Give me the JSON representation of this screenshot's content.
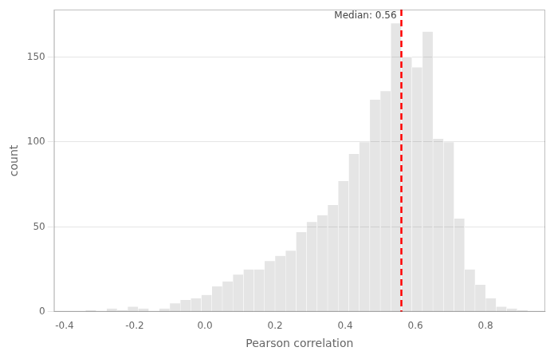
{
  "chart_data": {
    "type": "histogram",
    "xlabel": "Pearson correlation",
    "ylabel": "count",
    "bins": [
      -0.4,
      -0.37,
      -0.34,
      -0.31,
      -0.28,
      -0.25,
      -0.22,
      -0.19,
      -0.16,
      -0.13,
      -0.1,
      -0.07,
      -0.04,
      -0.01,
      0.02,
      0.05,
      0.08,
      0.11,
      0.14,
      0.17,
      0.2,
      0.23,
      0.26,
      0.29,
      0.32,
      0.35,
      0.38,
      0.41,
      0.44,
      0.47,
      0.5,
      0.53,
      0.56,
      0.59,
      0.62,
      0.65,
      0.68,
      0.71,
      0.74,
      0.77,
      0.8,
      0.83,
      0.86,
      0.89,
      0.92,
      0.95
    ],
    "values": [
      0,
      0,
      1,
      0,
      2,
      1,
      3,
      2,
      0,
      2,
      5,
      7,
      8,
      10,
      15,
      18,
      22,
      25,
      25,
      30,
      33,
      36,
      47,
      53,
      57,
      63,
      77,
      93,
      100,
      125,
      130,
      170,
      150,
      144,
      165,
      102,
      100,
      55,
      25,
      16,
      8,
      3,
      2,
      1,
      0
    ],
    "vlines": [
      {
        "x": 0.56,
        "label": "Median: 0.56",
        "color": "red",
        "line_style": "dashed"
      }
    ],
    "xlim": [
      -0.43,
      0.97
    ],
    "xticks": [
      -0.4,
      -0.2,
      {
        "value": 0,
        "label": "0.0"
      },
      0.2,
      0.4,
      0.6,
      0.8
    ],
    "ylim": [
      0,
      178
    ],
    "yticks": [
      0,
      50,
      100,
      150
    ],
    "grid": "y"
  }
}
